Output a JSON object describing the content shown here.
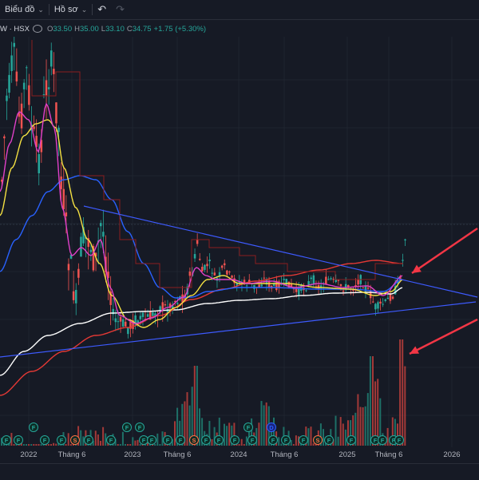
{
  "toolbar": {
    "chart_menu": "Biểu đồ",
    "profile_menu": "Hồ sơ"
  },
  "legend": {
    "symbol": "W · HSX",
    "open_label": "O",
    "open": "33.50",
    "high_label": "H",
    "high": "35.00",
    "low_label": "L",
    "low": "33.10",
    "close_label": "C",
    "close": "34.75",
    "change": "+1.75 (+5.30%)"
  },
  "x_axis": [
    "2022",
    "Tháng 6",
    "2023",
    "Tháng 6",
    "2024",
    "Tháng 6",
    "2025",
    "Tháng 6",
    "2026"
  ],
  "event_markers": [
    "F",
    "F",
    "F",
    "F",
    "F",
    "S",
    "F",
    "F",
    "F",
    "F",
    "F",
    "F",
    "F",
    "F",
    "S",
    "F",
    "F",
    "F",
    "F",
    "F",
    "D",
    "F",
    "F",
    "F",
    "S",
    "F",
    "F",
    "F",
    "F",
    "F",
    "F"
  ],
  "colors": {
    "background": "#161a25",
    "up": "#26a69a",
    "down": "#ef5350",
    "ma_short": "#e040c8",
    "ma_mid": "#f5e142",
    "ma_long": "#2962ff",
    "ma_200": "#ffffff",
    "ma_red": "#e53935",
    "trendline": "#3d5afe",
    "arrow": "#f23645"
  }
}
